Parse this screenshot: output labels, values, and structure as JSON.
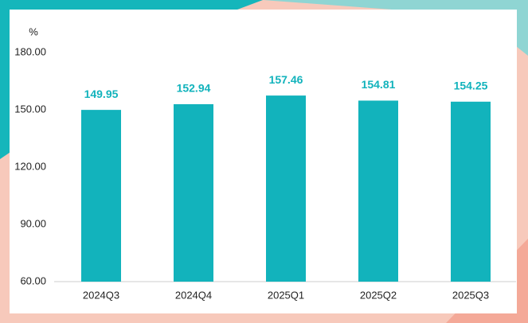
{
  "chart_data": {
    "type": "bar",
    "y_unit": "%",
    "categories": [
      "2024Q3",
      "2024Q4",
      "2025Q1",
      "2025Q2",
      "2025Q3"
    ],
    "values": [
      149.95,
      152.94,
      157.46,
      154.81,
      154.25
    ],
    "color": "#12b3bc",
    "ylim": [
      60,
      180
    ],
    "yticks": [
      {
        "value": 60,
        "label": "60.00"
      },
      {
        "value": 90,
        "label": "90.00"
      },
      {
        "value": 120,
        "label": "120.00"
      },
      {
        "value": 150,
        "label": "150.00"
      },
      {
        "value": 180,
        "label": "180.00"
      }
    ]
  }
}
